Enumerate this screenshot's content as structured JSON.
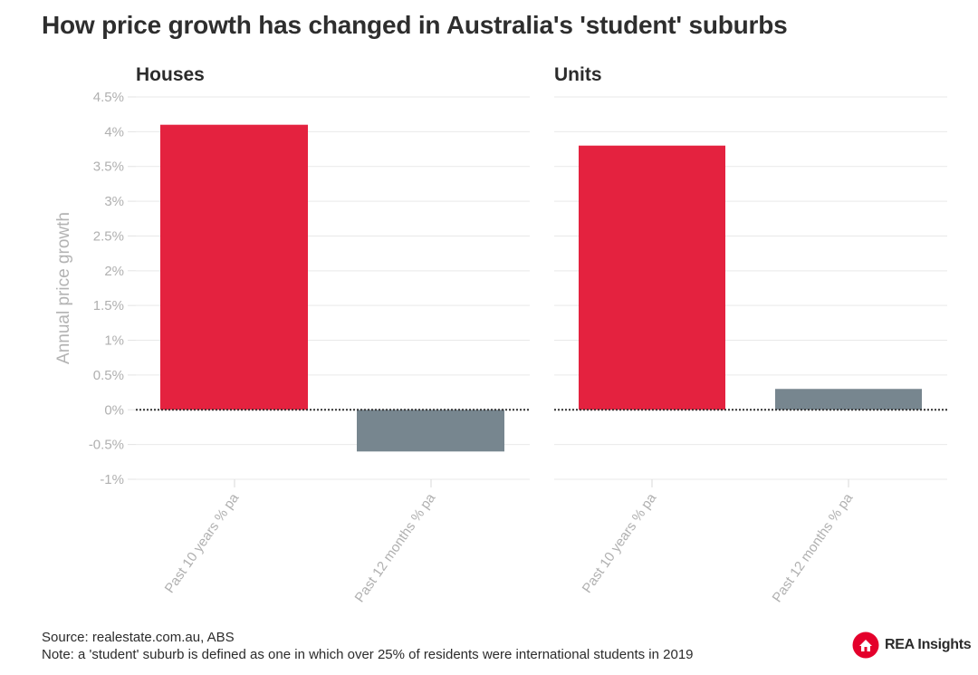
{
  "title": "How price growth has changed in Australia's 'student' suburbs",
  "footer": {
    "source": "Source: realestate.com.au, ABS",
    "note": "Note: a 'student' suburb is defined as one in which over 25% of residents were international students in 2019"
  },
  "logo": {
    "text": "REA Insights",
    "brand_color": "#e4002b"
  },
  "chart_data": {
    "type": "bar",
    "ylabel": "Annual price growth",
    "ylim": [
      -1,
      4.5
    ],
    "yticks": [
      -1,
      -0.5,
      0,
      0.5,
      1,
      1.5,
      2,
      2.5,
      3,
      3.5,
      4,
      4.5
    ],
    "ytick_labels": [
      "-1%",
      "-0.5%",
      "0%",
      "0.5%",
      "1%",
      "1.5%",
      "2%",
      "2.5%",
      "3%",
      "3.5%",
      "4%",
      "4.5%"
    ],
    "grid": true,
    "zero_line": "dotted",
    "colors": [
      "#e4223f",
      "#77868f"
    ],
    "panels": [
      {
        "title": "Houses",
        "categories": [
          "Past 10 years % pa",
          "Past 12 months % pa"
        ],
        "values": [
          4.1,
          -0.6
        ]
      },
      {
        "title": "Units",
        "categories": [
          "Past 10 years % pa",
          "Past 12 months % pa"
        ],
        "values": [
          3.8,
          0.3
        ]
      }
    ]
  }
}
